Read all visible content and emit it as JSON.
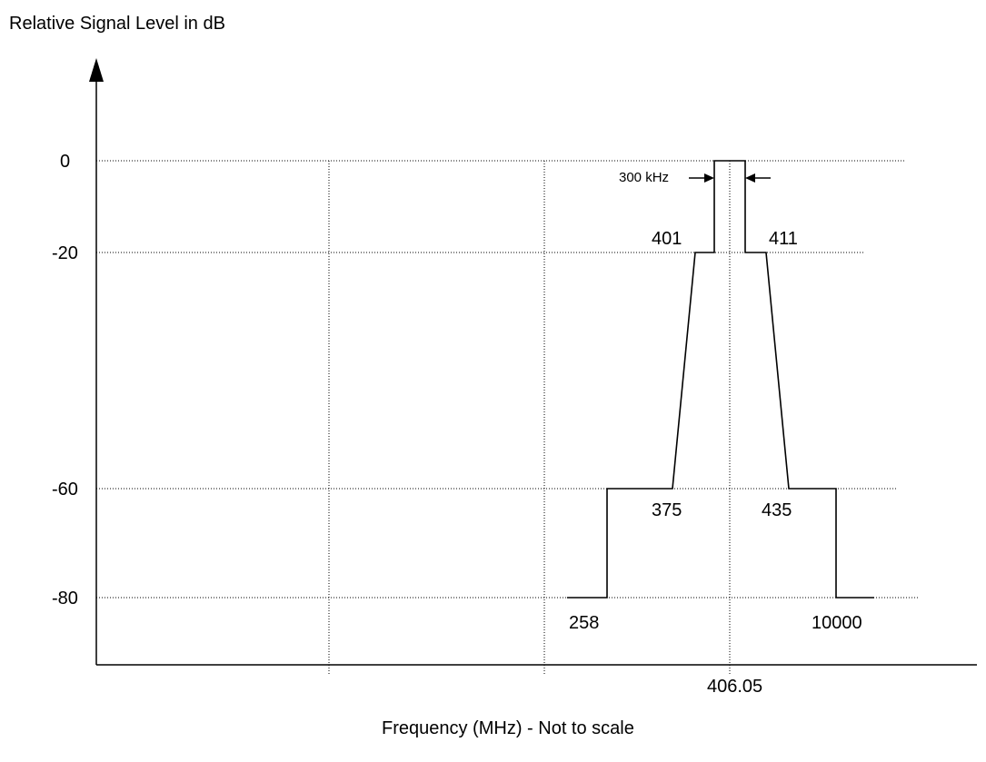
{
  "chart_data": {
    "type": "line",
    "ylabel": "Relative Signal Level in dB",
    "xlabel": "Frequency (MHz) - Not to scale",
    "y_ticks": [
      "0",
      "-20",
      "-60",
      "-80"
    ],
    "x_tick": "406.05",
    "grid": "dotted",
    "series": [
      {
        "points": [
          {
            "label": "258",
            "y": -80
          },
          {
            "label": "",
            "y": -80
          },
          {
            "label": "",
            "y": -60
          },
          {
            "label": "375",
            "y": -60
          },
          {
            "label": "401",
            "y": -20
          },
          {
            "label": "",
            "y": -20
          },
          {
            "label": "",
            "y": 0
          },
          {
            "label": "",
            "y": 0
          },
          {
            "label": "",
            "y": -20
          },
          {
            "label": "411",
            "y": -20
          },
          {
            "label": "435",
            "y": -60
          },
          {
            "label": "",
            "y": -60
          },
          {
            "label": "",
            "y": -80
          },
          {
            "label": "10000",
            "y": -80
          }
        ]
      }
    ],
    "annotation": "300 kHz"
  }
}
